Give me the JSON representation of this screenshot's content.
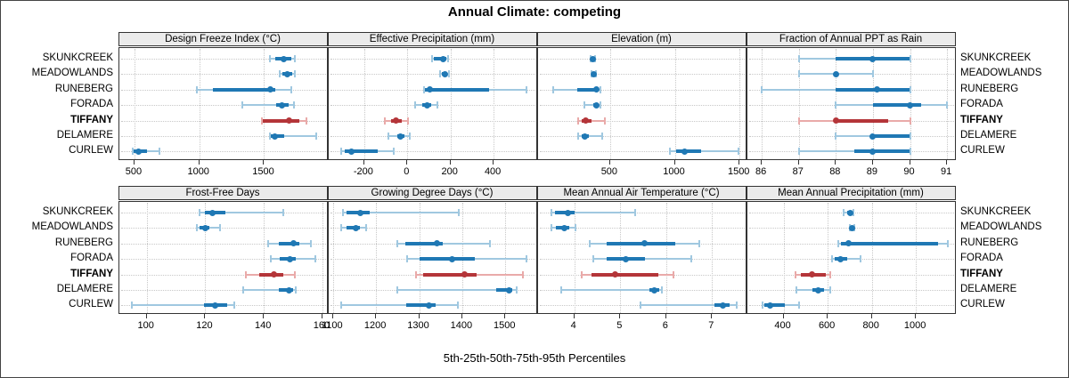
{
  "title": "Annual Climate: competing",
  "caption": "5th-25th-50th-75th-95th Percentiles",
  "stations": [
    "SKUNKCREEK",
    "MEADOWLANDS",
    "RUNEBERG",
    "FORADA",
    "TIFFANY",
    "DELAMERE",
    "CURLEW"
  ],
  "highlight_station": "TIFFANY",
  "colors": {
    "series_blue": "#1f78b4",
    "series_blue_light": "#a0c8e0",
    "series_red": "#b43539",
    "series_red_light": "#e9aaa9",
    "strip_bg": "#ebebeb",
    "grid": "#c8c8c8",
    "panel_border": "#333333"
  },
  "chart_data": {
    "type": "percentile-dotplot",
    "note": "whisker = 5th-95th (light), thick bar = 25th-75th, dot = 50th percentile",
    "percentiles": [
      "p5",
      "p25",
      "p50",
      "p75",
      "p95"
    ],
    "panels": [
      {
        "row": 0,
        "col": 0,
        "title": "Design Freeze Index (°C)",
        "xlim": [
          380,
          1995
        ],
        "ticks": [
          500,
          1000,
          1500
        ],
        "tick_labels": [
          "500",
          "1000",
          "1500"
        ],
        "values": [
          [
            1545,
            1585,
            1650,
            1710,
            1740
          ],
          [
            1620,
            1640,
            1680,
            1720,
            1740
          ],
          [
            980,
            1105,
            1550,
            1585,
            1710
          ],
          [
            1330,
            1595,
            1640,
            1690,
            1730
          ],
          [
            1480,
            1490,
            1695,
            1770,
            1825
          ],
          [
            1545,
            1550,
            1585,
            1655,
            1905
          ],
          [
            485,
            495,
            530,
            600,
            695
          ]
        ]
      },
      {
        "row": 0,
        "col": 1,
        "title": "Effective Precipitation (mm)",
        "xlim": [
          -367,
          604
        ],
        "ticks": [
          -200,
          0,
          200,
          400
        ],
        "tick_labels": [
          "-200",
          "0",
          "200",
          "400"
        ],
        "values": [
          [
            113,
            124,
            165,
            179,
            190
          ],
          [
            152,
            158,
            175,
            186,
            193
          ],
          [
            76,
            83,
            103,
            379,
            554
          ],
          [
            34,
            69,
            90,
            110,
            138
          ],
          [
            -103,
            -76,
            -52,
            -28,
            4
          ],
          [
            -90,
            -48,
            -32,
            -14,
            11
          ],
          [
            -306,
            -289,
            -259,
            -138,
            -62
          ]
        ]
      },
      {
        "row": 0,
        "col": 2,
        "title": "Elevation (m)",
        "xlim": [
          -60,
          1557
        ],
        "ticks": [
          500,
          1000,
          1500
        ],
        "tick_labels": [
          "500",
          "1000",
          "1500"
        ],
        "values": [
          [
            347,
            352,
            365,
            376,
            383
          ],
          [
            358,
            363,
            374,
            381,
            388
          ],
          [
            60,
            243,
            393,
            408,
            426
          ],
          [
            300,
            370,
            393,
            410,
            426
          ],
          [
            255,
            278,
            312,
            358,
            462
          ],
          [
            255,
            283,
            305,
            335,
            438
          ],
          [
            965,
            1012,
            1074,
            1206,
            1493
          ]
        ]
      },
      {
        "row": 0,
        "col": 3,
        "title": "Fraction of Annual PPT as Rain",
        "xlim": [
          85.6,
          91.25
        ],
        "ticks": [
          86,
          87,
          88,
          89,
          90,
          91
        ],
        "tick_labels": [
          "86",
          "87",
          "88",
          "89",
          "90",
          "91"
        ],
        "values": [
          [
            87,
            88,
            89,
            90,
            90
          ],
          [
            87,
            88,
            88,
            88,
            89
          ],
          [
            86,
            88,
            89.1,
            90,
            90
          ],
          [
            88,
            89,
            90,
            90.3,
            91
          ],
          [
            87,
            88,
            88,
            89.4,
            90
          ],
          [
            88,
            89,
            89,
            90,
            90
          ],
          [
            87,
            88.5,
            89,
            90,
            90
          ]
        ]
      },
      {
        "row": 1,
        "col": 0,
        "title": "Frost-Free Days",
        "xlim": [
          90.5,
          162
        ],
        "ticks": [
          100,
          120,
          140,
          160
        ],
        "tick_labels": [
          "100",
          "120",
          "140",
          "160"
        ],
        "values": [
          [
            118,
            120,
            122.5,
            127,
            146.5
          ],
          [
            117,
            118,
            120,
            121.5,
            125
          ],
          [
            141.5,
            145,
            150,
            152,
            156
          ],
          [
            142.5,
            145.5,
            149,
            151,
            157.5
          ],
          [
            134,
            138.5,
            143.5,
            146.5,
            150.5
          ],
          [
            133,
            145,
            148.5,
            150,
            151
          ],
          [
            95,
            119.5,
            123.5,
            127.5,
            130
          ]
        ]
      },
      {
        "row": 1,
        "col": 1,
        "title": "Growing Degree Days (°C)",
        "xlim": [
          1089,
          1575
        ],
        "ticks": [
          1100,
          1200,
          1300,
          1400,
          1500
        ],
        "tick_labels": [
          "1100",
          "1200",
          "1300",
          "1400",
          "1500"
        ],
        "values": [
          [
            1124,
            1131,
            1163,
            1186,
            1393
          ],
          [
            1119,
            1131,
            1153,
            1162,
            1176
          ],
          [
            1250,
            1267,
            1341,
            1355,
            1464
          ],
          [
            1272,
            1300,
            1376,
            1430,
            1550
          ],
          [
            1292,
            1310,
            1405,
            1434,
            1540
          ],
          [
            1250,
            1479,
            1508,
            1517,
            1526
          ],
          [
            1119,
            1269,
            1323,
            1338,
            1390
          ]
        ]
      },
      {
        "row": 1,
        "col": 2,
        "title": "Mean Annual Air Temperature (°C)",
        "xlim": [
          3.2,
          7.76
        ],
        "ticks": [
          4,
          5,
          6,
          7
        ],
        "tick_labels": [
          "4",
          "5",
          "6",
          "7"
        ],
        "values": [
          [
            3.5,
            3.58,
            3.86,
            4.0,
            5.33
          ],
          [
            3.5,
            3.6,
            3.78,
            3.88,
            4.02
          ],
          [
            4.33,
            4.71,
            5.52,
            6.2,
            6.73
          ],
          [
            4.42,
            4.7,
            5.12,
            5.54,
            6.54
          ],
          [
            4.16,
            4.38,
            4.89,
            5.83,
            6.16
          ],
          [
            3.72,
            5.64,
            5.74,
            5.84,
            5.9
          ],
          [
            5.44,
            7.06,
            7.24,
            7.39,
            7.53
          ]
        ]
      },
      {
        "row": 1,
        "col": 3,
        "title": "Mean Annual Precipitation (mm)",
        "xlim": [
          234,
          1183
        ],
        "ticks": [
          400,
          600,
          800,
          1000
        ],
        "tick_labels": [
          "400",
          "600",
          "800",
          "1000"
        ],
        "values": [
          [
            674,
            688,
            703,
            710,
            717
          ],
          [
            700,
            703,
            710,
            714,
            719
          ],
          [
            646,
            660,
            694,
            1100,
            1145
          ],
          [
            620,
            633,
            657,
            687,
            747
          ],
          [
            455,
            478,
            528,
            590,
            610
          ],
          [
            460,
            530,
            556,
            585,
            610
          ],
          [
            303,
            313,
            337,
            404,
            470
          ]
        ]
      }
    ]
  }
}
